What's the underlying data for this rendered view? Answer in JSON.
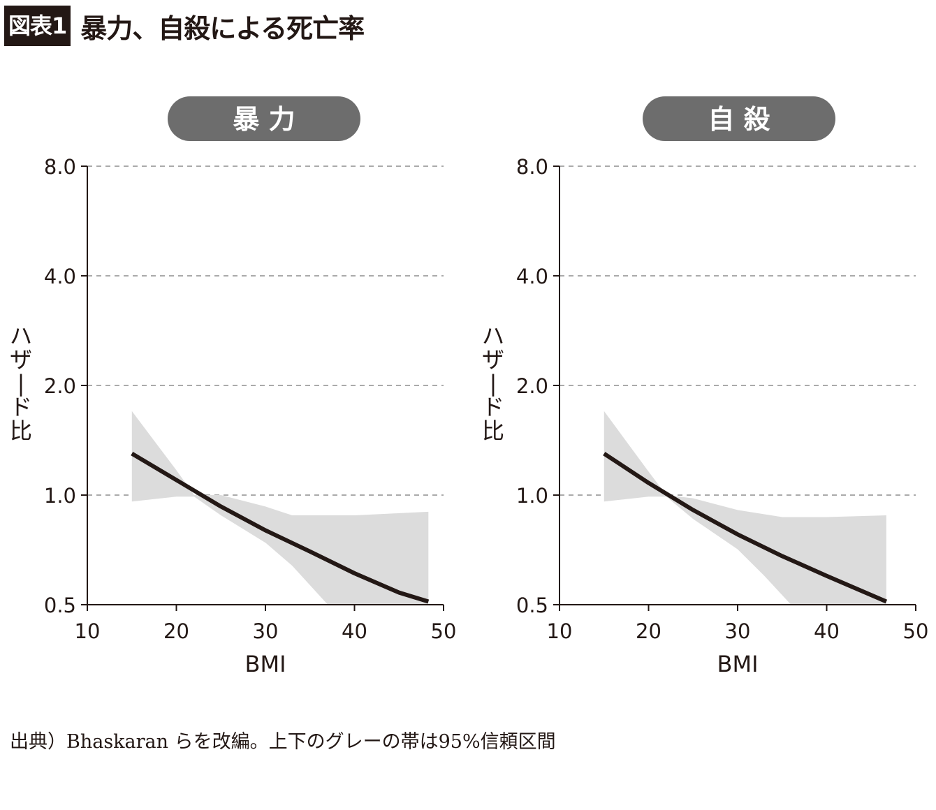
{
  "figure": {
    "tag": "図表1",
    "title": "暴力、自殺による死亡率",
    "source": "出典）Bhaskaran らを改編。上下のグレーの帯は95%信頼区間"
  },
  "colors": {
    "line": "#231815",
    "band": "#dcdcdc",
    "grid": "#aaaaaa",
    "pill": "#6d6d6d",
    "pill_text": "#ffffff"
  },
  "chart_data": [
    {
      "type": "line",
      "title": "暴 力",
      "xlabel": "BMI",
      "ylabel": "ハザード比",
      "xlim": [
        10,
        50
      ],
      "ylim": [
        0.5,
        8.0
      ],
      "y_scale": "log",
      "xticks": [
        10,
        20,
        30,
        40,
        50
      ],
      "yticks": [
        0.5,
        1.0,
        2.0,
        4.0,
        8.0
      ],
      "ytick_labels": [
        "0.5",
        "1.0",
        "2.0",
        "4.0",
        "8.0"
      ],
      "grid": "horizontal dashed",
      "series": [
        {
          "role": "estimate",
          "x": [
            15,
            20,
            25,
            30,
            35,
            40,
            45,
            48.3
          ],
          "y": [
            1.3,
            1.1,
            0.93,
            0.8,
            0.7,
            0.61,
            0.54,
            0.51
          ]
        },
        {
          "role": "ci_upper",
          "x": [
            15,
            20,
            22,
            25,
            30,
            33,
            40,
            48.3
          ],
          "y": [
            1.7,
            1.17,
            1.0,
            1.0,
            0.93,
            0.88,
            0.88,
            0.9
          ]
        },
        {
          "role": "ci_lower",
          "x": [
            15,
            20,
            22,
            25,
            30,
            33,
            37,
            48.3
          ],
          "y": [
            0.96,
            0.99,
            0.99,
            0.88,
            0.74,
            0.64,
            0.5,
            0.5
          ]
        }
      ]
    },
    {
      "type": "line",
      "title": "自 殺",
      "xlabel": "BMI",
      "ylabel": "ハザード比",
      "xlim": [
        10,
        50
      ],
      "ylim": [
        0.5,
        8.0
      ],
      "y_scale": "log",
      "xticks": [
        10,
        20,
        30,
        40,
        50
      ],
      "yticks": [
        0.5,
        1.0,
        2.0,
        4.0,
        8.0
      ],
      "ytick_labels": [
        "0.5",
        "1.0",
        "2.0",
        "4.0",
        "8.0"
      ],
      "grid": "horizontal dashed",
      "series": [
        {
          "role": "estimate",
          "x": [
            15,
            20,
            25,
            30,
            35,
            40,
            46.7
          ],
          "y": [
            1.3,
            1.08,
            0.91,
            0.78,
            0.68,
            0.6,
            0.51
          ]
        },
        {
          "role": "ci_upper",
          "x": [
            15,
            20,
            22,
            25,
            30,
            35,
            40,
            46.7
          ],
          "y": [
            1.7,
            1.16,
            1.0,
            0.98,
            0.91,
            0.87,
            0.87,
            0.88
          ]
        },
        {
          "role": "ci_lower",
          "x": [
            15,
            20,
            22,
            25,
            30,
            33,
            36,
            46.7
          ],
          "y": [
            0.96,
            0.99,
            0.99,
            0.86,
            0.71,
            0.6,
            0.5,
            0.5
          ]
        }
      ]
    }
  ]
}
